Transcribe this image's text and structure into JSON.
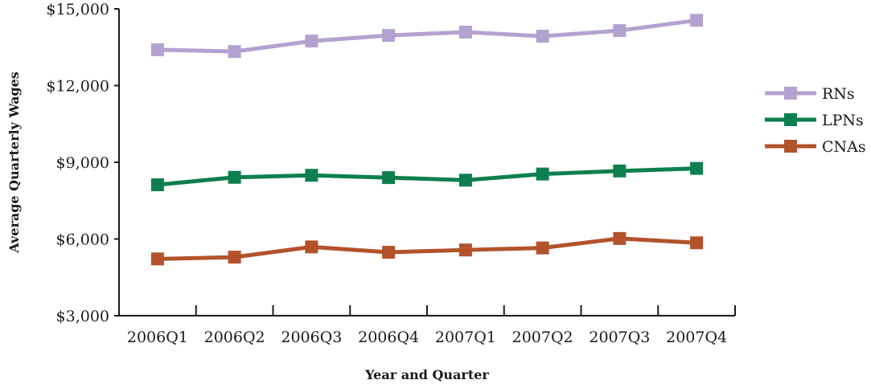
{
  "chart_data": {
    "type": "line",
    "title": "",
    "xlabel": "Year and Quarter",
    "ylabel": "Average Quarterly Wages",
    "categories": [
      "2006Q1",
      "2006Q2",
      "2006Q3",
      "2006Q4",
      "2007Q1",
      "2007Q2",
      "2007Q3",
      "2007Q4"
    ],
    "ylim": [
      3000,
      15000
    ],
    "yticks": [
      3000,
      6000,
      9000,
      12000,
      15000
    ],
    "ytick_labels": [
      "$3,000",
      "$6,000",
      "$9,000",
      "$12,000",
      "$15,000"
    ],
    "grid": false,
    "legend_position": "right",
    "series": [
      {
        "name": "RNs",
        "color": "#b3a2cf",
        "values": [
          13400,
          13330,
          13740,
          13960,
          14090,
          13930,
          14150,
          14550
        ]
      },
      {
        "name": "LPNs",
        "color": "#0d7f4f",
        "values": [
          8120,
          8410,
          8490,
          8400,
          8300,
          8540,
          8660,
          8760
        ]
      },
      {
        "name": "CNAs",
        "color": "#b3522b",
        "values": [
          5220,
          5290,
          5690,
          5480,
          5570,
          5650,
          6020,
          5850
        ]
      }
    ]
  }
}
